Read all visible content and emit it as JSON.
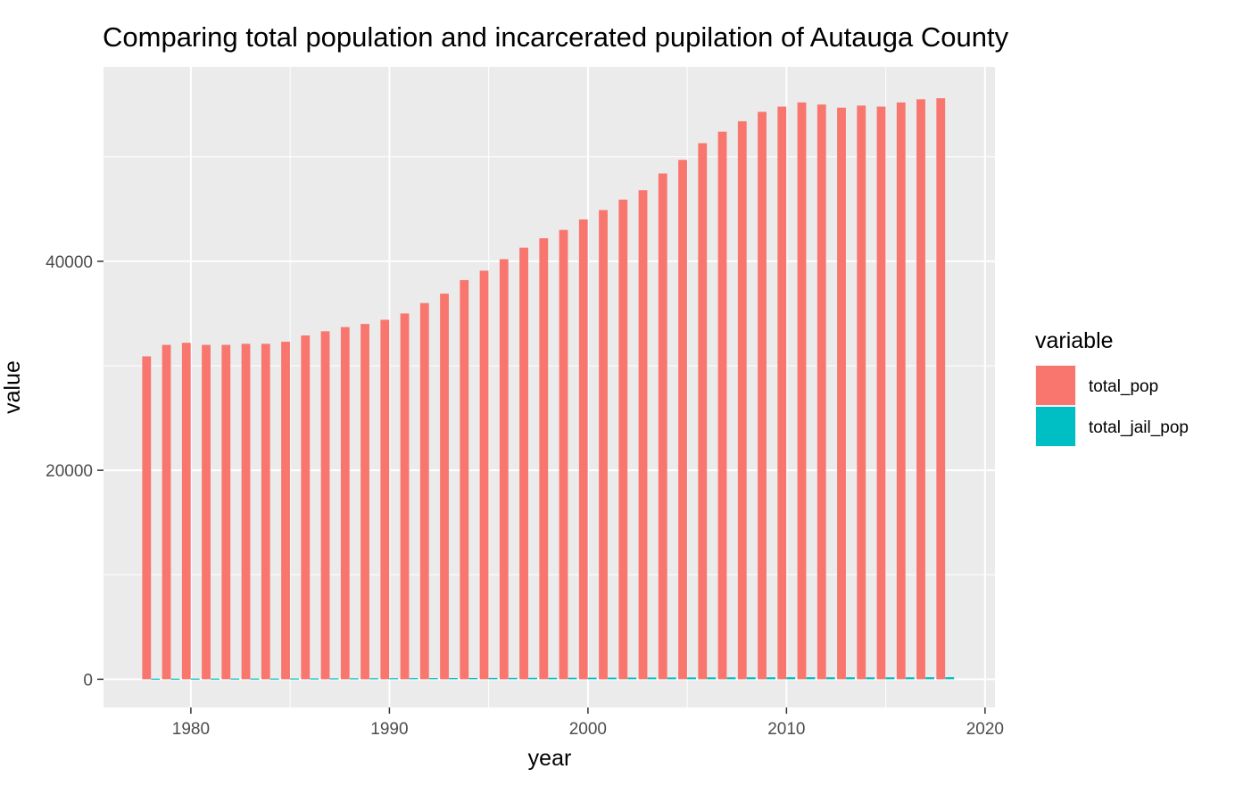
{
  "chart_data": {
    "type": "bar",
    "title": "Comparing total population and incarcerated pupilation of Autauga County",
    "xlabel": "year",
    "ylabel": "value",
    "xlim": [
      1975.6,
      2020.5
    ],
    "ylim": [
      -2700,
      58600
    ],
    "x_ticks": [
      1980,
      1990,
      2000,
      2010,
      2020
    ],
    "x_tick_labels": [
      "1980",
      "1990",
      "2000",
      "2010",
      "2020"
    ],
    "y_ticks": [
      0,
      20000,
      40000
    ],
    "y_tick_labels": [
      "0",
      "20000",
      "40000"
    ],
    "grid": true,
    "legend": {
      "title": "variable",
      "position": "right"
    },
    "x": [
      1978,
      1979,
      1980,
      1981,
      1982,
      1983,
      1984,
      1985,
      1986,
      1987,
      1988,
      1989,
      1990,
      1991,
      1992,
      1993,
      1994,
      1995,
      1996,
      1997,
      1998,
      1999,
      2000,
      2001,
      2002,
      2003,
      2004,
      2005,
      2006,
      2007,
      2008,
      2009,
      2010,
      2011,
      2012,
      2013,
      2014,
      2015,
      2016,
      2017,
      2018
    ],
    "series": [
      {
        "name": "total_pop",
        "color": "#F8766D",
        "values": [
          30900,
          32000,
          32200,
          32000,
          32000,
          32100,
          32100,
          32300,
          32900,
          33300,
          33700,
          34000,
          34400,
          35000,
          36000,
          36900,
          38200,
          39100,
          40200,
          41300,
          42200,
          43000,
          44000,
          44900,
          45900,
          46800,
          48400,
          49700,
          51300,
          52400,
          53400,
          54300,
          54800,
          55200,
          55000,
          54700,
          54900,
          54800,
          55200,
          55500,
          55600
        ]
      },
      {
        "name": "total_jail_pop",
        "color": "#00BFC4",
        "values": [
          60,
          60,
          65,
          65,
          70,
          70,
          70,
          75,
          80,
          85,
          90,
          95,
          100,
          105,
          110,
          115,
          120,
          125,
          130,
          135,
          140,
          145,
          150,
          155,
          160,
          165,
          170,
          175,
          180,
          185,
          190,
          190,
          195,
          195,
          190,
          190,
          185,
          185,
          190,
          195,
          200
        ]
      }
    ]
  }
}
